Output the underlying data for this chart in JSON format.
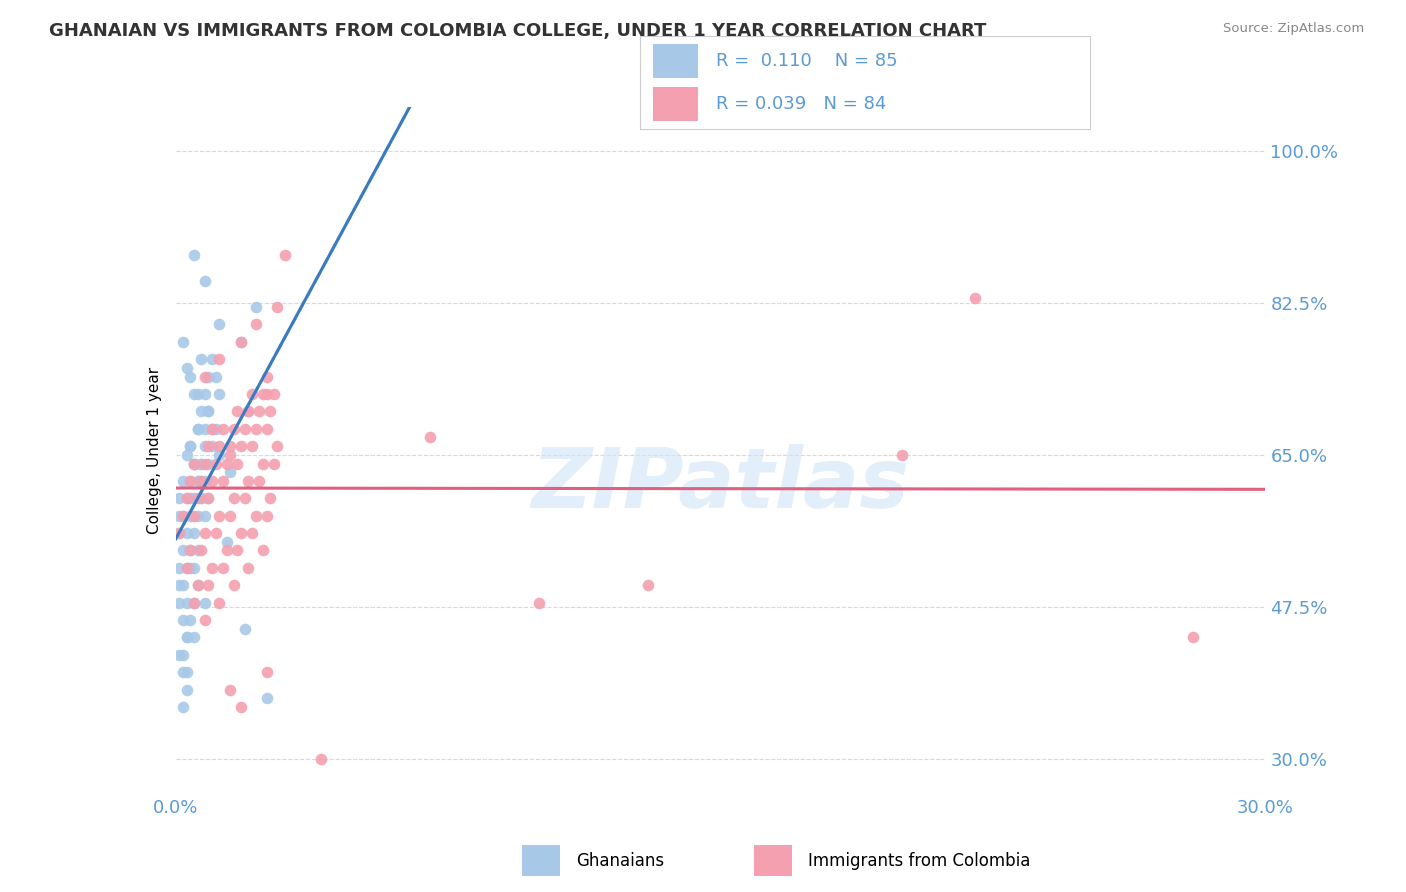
{
  "title": "GHANAIAN VS IMMIGRANTS FROM COLOMBIA COLLEGE, UNDER 1 YEAR CORRELATION CHART",
  "source_text": "Source: ZipAtlas.com",
  "ylabel": "College, Under 1 year",
  "ytick_labels": [
    "100.0%",
    "82.5%",
    "65.0%",
    "47.5%",
    "30.0%"
  ],
  "ytick_values": [
    1.0,
    0.825,
    0.65,
    0.475,
    0.3
  ],
  "xmin": 0.0,
  "xmax": 0.3,
  "ymin": 0.26,
  "ymax": 1.05,
  "blue_color": "#a8c8e8",
  "pink_color": "#f4a0b0",
  "trend_blue_solid": "#3a7abf",
  "trend_blue_dashed": "#a8c8e8",
  "trend_pink_solid": "#e06080",
  "legend_R1": "0.110",
  "legend_N1": "85",
  "legend_R2": "0.039",
  "legend_N2": "84",
  "legend_label1": "Ghanaians",
  "legend_label2": "Immigrants from Colombia",
  "blue_scatter_x": [
    0.005,
    0.022,
    0.018,
    0.008,
    0.012,
    0.003,
    0.006,
    0.004,
    0.007,
    0.009,
    0.002,
    0.005,
    0.008,
    0.011,
    0.003,
    0.006,
    0.009,
    0.012,
    0.004,
    0.007,
    0.01,
    0.002,
    0.005,
    0.008,
    0.011,
    0.003,
    0.006,
    0.009,
    0.001,
    0.004,
    0.007,
    0.01,
    0.002,
    0.005,
    0.008,
    0.003,
    0.006,
    0.009,
    0.001,
    0.004,
    0.007,
    0.002,
    0.005,
    0.008,
    0.003,
    0.006,
    0.001,
    0.004,
    0.007,
    0.002,
    0.005,
    0.003,
    0.006,
    0.001,
    0.004,
    0.002,
    0.005,
    0.003,
    0.001,
    0.004,
    0.002,
    0.003,
    0.001,
    0.002,
    0.004,
    0.003,
    0.005,
    0.002,
    0.001,
    0.003,
    0.006,
    0.004,
    0.007,
    0.005,
    0.008,
    0.006,
    0.009,
    0.007,
    0.01,
    0.012,
    0.015,
    0.008,
    0.019,
    0.025,
    0.014
  ],
  "blue_scatter_y": [
    0.88,
    0.82,
    0.78,
    0.85,
    0.8,
    0.75,
    0.72,
    0.74,
    0.76,
    0.7,
    0.78,
    0.72,
    0.68,
    0.74,
    0.65,
    0.68,
    0.7,
    0.72,
    0.66,
    0.64,
    0.68,
    0.62,
    0.64,
    0.66,
    0.68,
    0.6,
    0.62,
    0.64,
    0.6,
    0.62,
    0.64,
    0.66,
    0.58,
    0.6,
    0.62,
    0.56,
    0.58,
    0.6,
    0.58,
    0.6,
    0.62,
    0.54,
    0.56,
    0.58,
    0.52,
    0.54,
    0.56,
    0.58,
    0.6,
    0.5,
    0.52,
    0.48,
    0.5,
    0.52,
    0.54,
    0.46,
    0.48,
    0.44,
    0.5,
    0.52,
    0.42,
    0.44,
    0.48,
    0.4,
    0.46,
    0.38,
    0.44,
    0.36,
    0.42,
    0.4,
    0.68,
    0.66,
    0.7,
    0.64,
    0.72,
    0.62,
    0.74,
    0.6,
    0.76,
    0.65,
    0.63,
    0.48,
    0.45,
    0.37,
    0.55
  ],
  "pink_scatter_x": [
    0.01,
    0.015,
    0.02,
    0.025,
    0.03,
    0.008,
    0.012,
    0.018,
    0.022,
    0.028,
    0.005,
    0.009,
    0.013,
    0.017,
    0.021,
    0.025,
    0.004,
    0.008,
    0.012,
    0.016,
    0.02,
    0.024,
    0.003,
    0.007,
    0.011,
    0.015,
    0.019,
    0.023,
    0.027,
    0.002,
    0.006,
    0.01,
    0.014,
    0.018,
    0.022,
    0.026,
    0.001,
    0.005,
    0.009,
    0.013,
    0.017,
    0.021,
    0.025,
    0.004,
    0.008,
    0.012,
    0.016,
    0.02,
    0.024,
    0.028,
    0.003,
    0.007,
    0.011,
    0.015,
    0.019,
    0.023,
    0.027,
    0.006,
    0.01,
    0.014,
    0.018,
    0.022,
    0.026,
    0.005,
    0.009,
    0.013,
    0.017,
    0.021,
    0.025,
    0.008,
    0.012,
    0.016,
    0.02,
    0.024,
    0.018,
    0.025,
    0.22,
    0.015,
    0.28,
    0.2,
    0.13,
    0.1,
    0.07,
    0.04
  ],
  "pink_scatter_y": [
    0.68,
    0.65,
    0.7,
    0.72,
    0.88,
    0.74,
    0.76,
    0.78,
    0.8,
    0.82,
    0.64,
    0.66,
    0.68,
    0.7,
    0.72,
    0.74,
    0.62,
    0.64,
    0.66,
    0.68,
    0.7,
    0.72,
    0.6,
    0.62,
    0.64,
    0.66,
    0.68,
    0.7,
    0.72,
    0.58,
    0.6,
    0.62,
    0.64,
    0.66,
    0.68,
    0.7,
    0.56,
    0.58,
    0.6,
    0.62,
    0.64,
    0.66,
    0.68,
    0.54,
    0.56,
    0.58,
    0.6,
    0.62,
    0.64,
    0.66,
    0.52,
    0.54,
    0.56,
    0.58,
    0.6,
    0.62,
    0.64,
    0.5,
    0.52,
    0.54,
    0.56,
    0.58,
    0.6,
    0.48,
    0.5,
    0.52,
    0.54,
    0.56,
    0.58,
    0.46,
    0.48,
    0.5,
    0.52,
    0.54,
    0.36,
    0.4,
    0.83,
    0.38,
    0.44,
    0.65,
    0.5,
    0.48,
    0.67,
    0.3
  ],
  "watermark_text": "ZIPatlas",
  "axis_color": "#5b9bd5",
  "grid_color": "#d0d0d0",
  "tick_color": "#5b9bd5"
}
